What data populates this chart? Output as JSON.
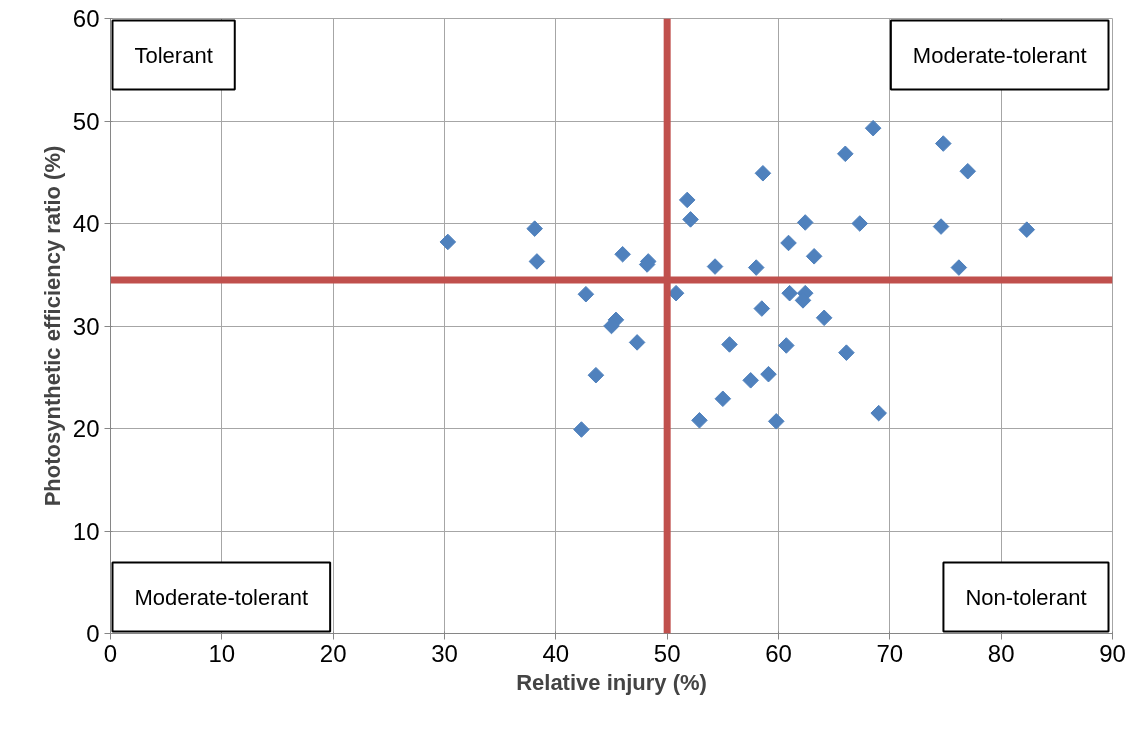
{
  "chart_data": {
    "type": "scatter",
    "xlabel": "Relative injury (%)",
    "ylabel": "Photosynthetic efficiency ratio (%)",
    "x": [
      30.3,
      38.1,
      38.3,
      46.0,
      48.3,
      48.2,
      42.7,
      45.4,
      45.0,
      47.3,
      43.6,
      42.3,
      50.8,
      68.5,
      66.0,
      58.6,
      51.8,
      52.1,
      62.4,
      67.3,
      60.9,
      63.2,
      54.3,
      58.0,
      61.0,
      62.4,
      62.2,
      58.5,
      64.1,
      55.6,
      60.7,
      66.1,
      59.1,
      57.5,
      55.0,
      52.9,
      59.8,
      69.0,
      77.0,
      74.6,
      82.3,
      76.2,
      74.8
    ],
    "series": [
      {
        "color": "#4f81bd",
        "values": [
          38.2,
          39.5,
          36.3,
          37.0,
          36.3,
          36.0,
          33.1,
          30.6,
          30.0,
          28.4,
          25.2,
          19.9,
          33.2,
          49.3,
          46.8,
          44.9,
          42.3,
          40.4,
          40.1,
          40.0,
          38.1,
          36.8,
          35.8,
          35.7,
          33.2,
          33.2,
          32.5,
          31.7,
          30.8,
          28.2,
          28.1,
          27.4,
          25.3,
          24.7,
          22.9,
          20.8,
          20.7,
          21.5,
          45.1,
          39.7,
          39.4,
          35.7,
          47.8
        ]
      }
    ],
    "marker": "diamond",
    "grid": true,
    "xlim": [
      0,
      90
    ],
    "xticks": [
      0,
      10,
      20,
      30,
      40,
      50,
      60,
      70,
      80,
      90
    ],
    "ylim": [
      0,
      60
    ],
    "yticks": [
      0,
      10,
      20,
      30,
      40,
      50,
      60
    ],
    "ref_lines": [
      {
        "axis": "x",
        "value": 50,
        "color": "#c0504d"
      },
      {
        "axis": "y",
        "value": 34.5,
        "color": "#c0504d"
      }
    ],
    "annotations": [
      "Tolerant",
      "Moderate-tolerant",
      "Moderate-tolerant",
      "Non-tolerant"
    ]
  }
}
